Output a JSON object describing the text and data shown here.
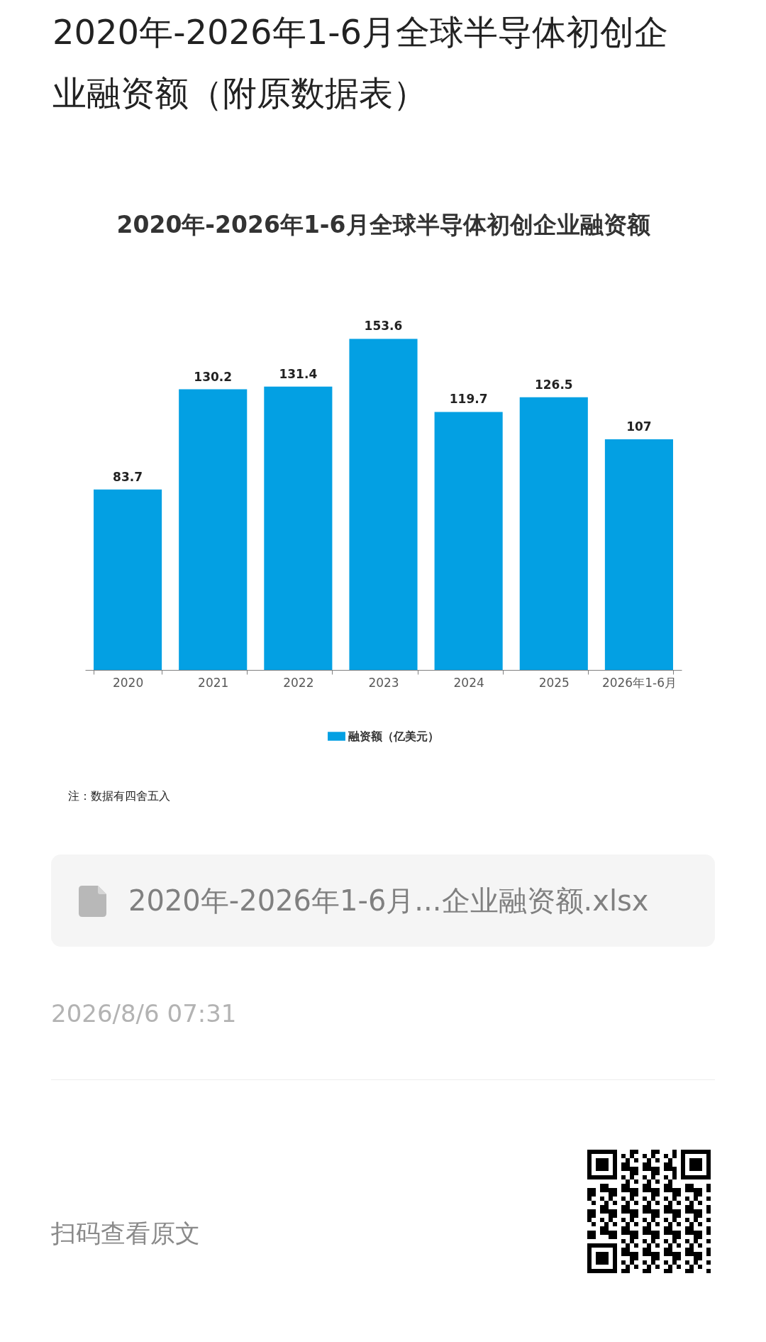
{
  "chart_data": {
    "type": "bar",
    "title": "2020年-2026年1-6月全球半导体初创企业融资额（附原数据表）",
    "subtitle": "2020年-2026年1-6月全球半导体初创企业融资额",
    "categories": [
      "2020",
      "2021",
      "2022",
      "2023",
      "2024",
      "2025",
      "2026年1-6月"
    ],
    "series": [
      {
        "name": "融资额（亿美元）",
        "color": "#03a0e3",
        "values": [
          83.7,
          130.2,
          131.4,
          153.6,
          119.7,
          126.5,
          107
        ]
      }
    ],
    "data_labels": true,
    "legend": "bottom",
    "tick_labels": "x",
    "annotations": [
      "注：数据有四舍五入",
      "2020年-2026年1-6月...企业融资额.xlsx",
      "2026/8/6 07:31",
      "扫码查看原文"
    ]
  }
}
